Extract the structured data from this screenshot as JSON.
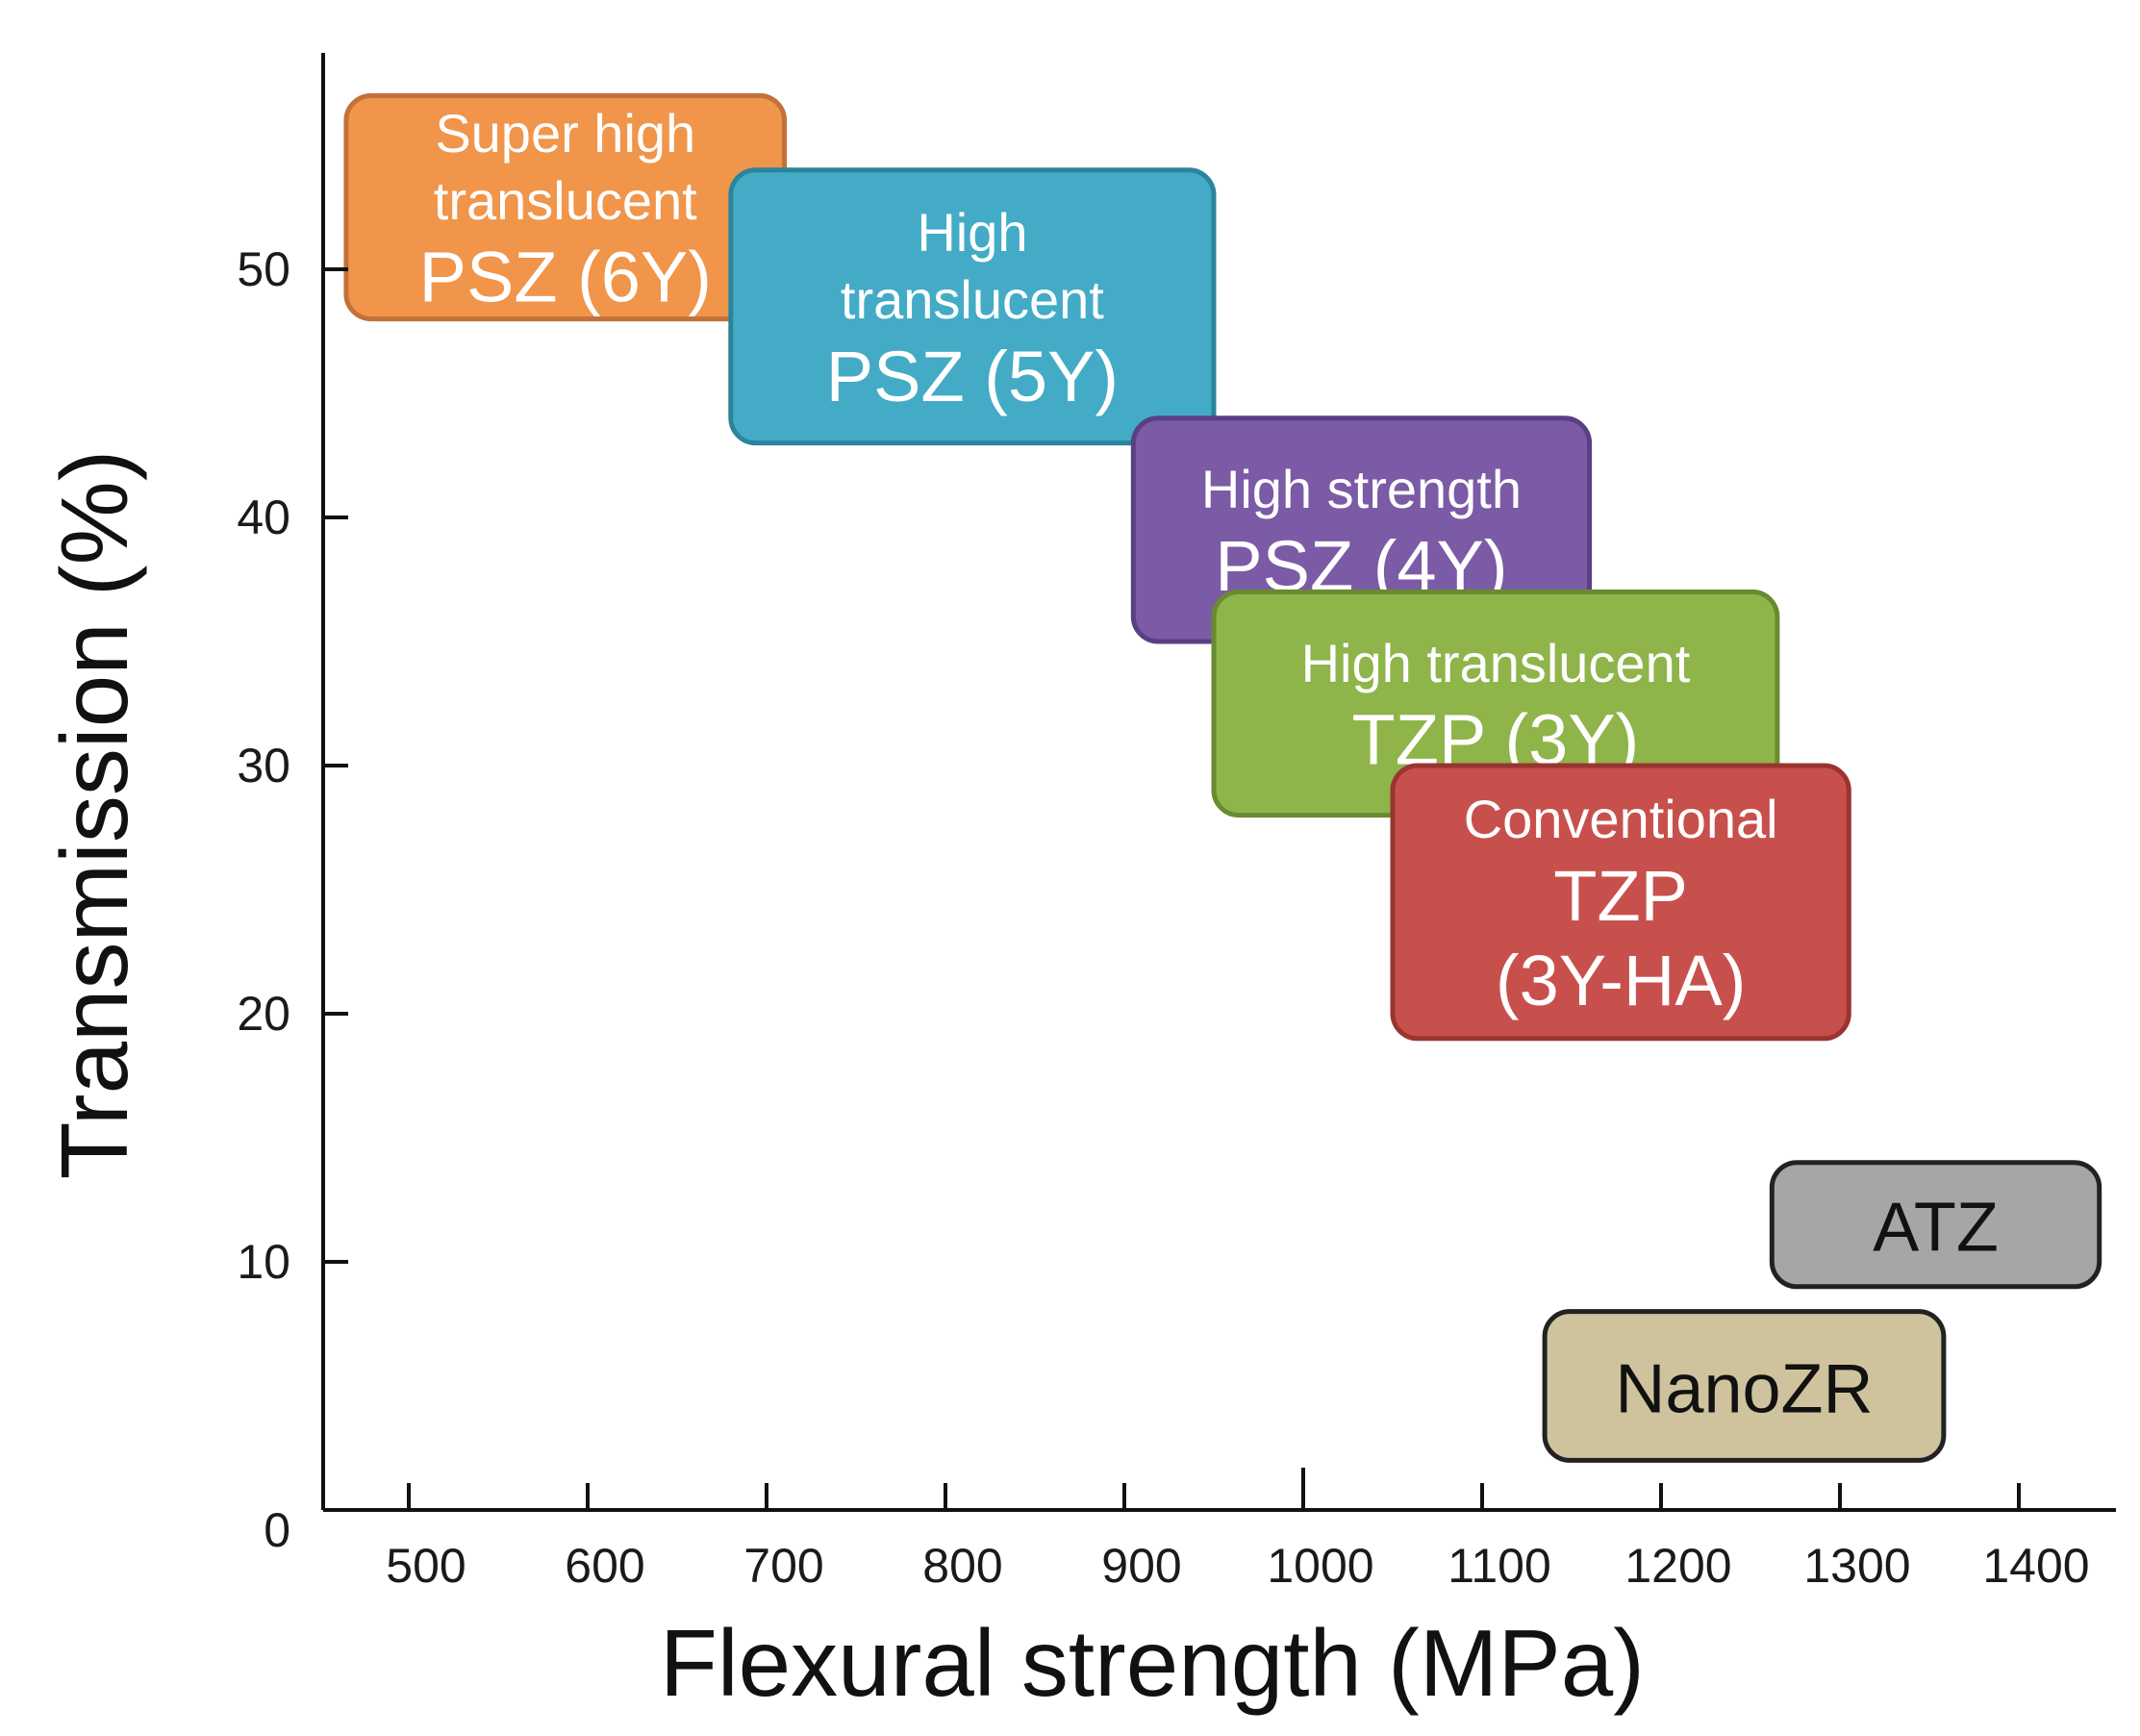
{
  "chart_data": {
    "type": "other",
    "xlabel": "Flexural strength (MPa)",
    "ylabel": "Transmission (%)",
    "xlim": [
      450,
      1450
    ],
    "ylim": [
      0,
      56
    ],
    "x_ticks": [
      500,
      600,
      700,
      800,
      900,
      1000,
      1100,
      1200,
      1300,
      1400
    ],
    "y_ticks": [
      0,
      10,
      20,
      30,
      40,
      50
    ],
    "grid": false,
    "regions": [
      {
        "lines": [
          "Super high",
          "translucent",
          "PSZ (6Y)"
        ],
        "x_range": [
          465,
          710
        ],
        "y_range": [
          48,
          57
        ],
        "color": "#f0954a",
        "edge_color": "#c2713a",
        "text_color": "#ffffff"
      },
      {
        "lines": [
          "High",
          "translucent",
          "PSZ (5Y)"
        ],
        "x_range": [
          680,
          950
        ],
        "y_range": [
          43,
          54
        ],
        "color": "#43abc6",
        "edge_color": "#2c849c",
        "text_color": "#ffffff"
      },
      {
        "lines": [
          "High strength",
          "PSZ (4Y)"
        ],
        "x_range": [
          905,
          1160
        ],
        "y_range": [
          35,
          44
        ],
        "color": "#7b5aa6",
        "edge_color": "#5a3f83",
        "text_color": "#ffffff"
      },
      {
        "lines": [
          "High translucent",
          "TZP (3Y)"
        ],
        "x_range": [
          950,
          1265
        ],
        "y_range": [
          28,
          37
        ],
        "color": "#8fb44a",
        "edge_color": "#6a8a32",
        "text_color": "#ffffff"
      },
      {
        "lines": [
          "Conventional",
          "TZP",
          "(3Y-HA)"
        ],
        "x_range": [
          1050,
          1305
        ],
        "y_range": [
          19,
          30
        ],
        "color": "#c8504c",
        "edge_color": "#9a3431",
        "text_color": "#ffffff"
      },
      {
        "lines": [
          "ATZ"
        ],
        "x_range": [
          1262,
          1445
        ],
        "y_range": [
          9,
          14
        ],
        "color": "#a6a6a6",
        "edge_color": "#222222",
        "text_color": "#111111"
      },
      {
        "lines": [
          "NanoZR"
        ],
        "x_range": [
          1135,
          1358
        ],
        "y_range": [
          2,
          8
        ],
        "color": "#cfc39e",
        "edge_color": "#222222",
        "text_color": "#111111"
      }
    ]
  }
}
